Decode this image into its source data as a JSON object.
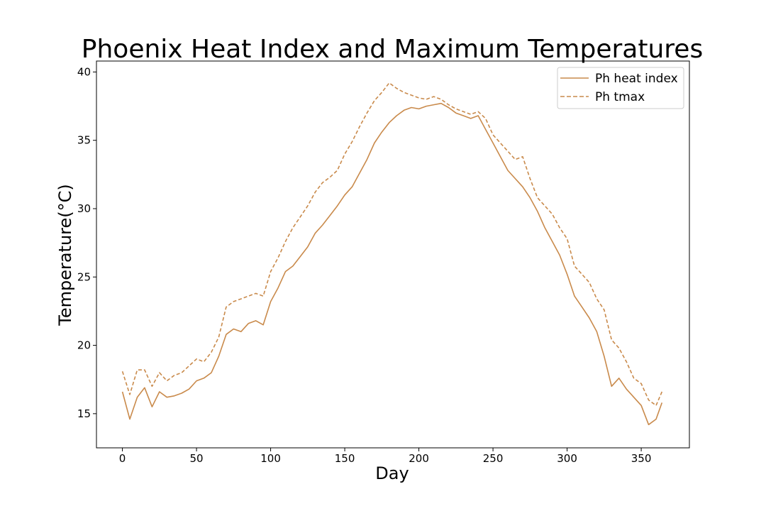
{
  "chart_data": {
    "type": "line",
    "title": "Phoenix Heat Index and Maximum Temperatures",
    "xlabel": "Day",
    "ylabel": "Temperature(°C)",
    "xlim": [
      -17.5,
      382.5
    ],
    "ylim": [
      12.5,
      40.8
    ],
    "xticks": [
      0,
      50,
      100,
      150,
      200,
      250,
      300,
      350
    ],
    "yticks": [
      15,
      20,
      25,
      30,
      35,
      40
    ],
    "legend_position": "top-right",
    "grid": false,
    "line_color": "#c98a4b",
    "series": [
      {
        "name": "Ph heat index",
        "style": "solid",
        "x": [
          0,
          5,
          10,
          15,
          20,
          25,
          30,
          35,
          40,
          45,
          50,
          55,
          60,
          65,
          70,
          75,
          80,
          85,
          90,
          95,
          100,
          105,
          110,
          115,
          120,
          125,
          130,
          135,
          140,
          145,
          150,
          155,
          160,
          165,
          170,
          175,
          180,
          185,
          190,
          195,
          200,
          205,
          210,
          215,
          220,
          225,
          230,
          235,
          240,
          245,
          250,
          255,
          260,
          265,
          270,
          275,
          280,
          285,
          290,
          295,
          300,
          305,
          310,
          315,
          320,
          325,
          330,
          335,
          340,
          345,
          350,
          355,
          360,
          364
        ],
        "y": [
          16.6,
          14.6,
          16.2,
          16.9,
          15.5,
          16.6,
          16.2,
          16.3,
          16.5,
          16.8,
          17.4,
          17.6,
          18.0,
          19.2,
          20.8,
          21.2,
          21.0,
          21.6,
          21.8,
          21.5,
          23.2,
          24.2,
          25.4,
          25.8,
          26.5,
          27.2,
          28.2,
          28.8,
          29.5,
          30.2,
          31.0,
          31.6,
          32.6,
          33.6,
          34.8,
          35.6,
          36.3,
          36.8,
          37.2,
          37.4,
          37.3,
          37.5,
          37.6,
          37.7,
          37.4,
          37.0,
          36.8,
          36.6,
          36.8,
          35.8,
          34.8,
          33.8,
          32.8,
          32.2,
          31.6,
          30.8,
          29.8,
          28.6,
          27.6,
          26.6,
          25.2,
          23.6,
          22.8,
          22.0,
          21.0,
          19.2,
          17.0,
          17.6,
          16.8,
          16.2,
          15.6,
          14.2,
          14.6,
          15.8
        ]
      },
      {
        "name": "Ph tmax",
        "style": "dashed",
        "x": [
          0,
          5,
          10,
          15,
          20,
          25,
          30,
          35,
          40,
          45,
          50,
          55,
          60,
          65,
          70,
          75,
          80,
          85,
          90,
          95,
          100,
          105,
          110,
          115,
          120,
          125,
          130,
          135,
          140,
          145,
          150,
          155,
          160,
          165,
          170,
          175,
          180,
          185,
          190,
          195,
          200,
          205,
          210,
          215,
          220,
          225,
          230,
          235,
          240,
          245,
          250,
          255,
          260,
          265,
          270,
          275,
          280,
          285,
          290,
          295,
          300,
          305,
          310,
          315,
          320,
          325,
          330,
          335,
          340,
          345,
          350,
          355,
          360,
          364
        ],
        "y": [
          18.1,
          16.4,
          18.2,
          18.2,
          17.0,
          18.0,
          17.4,
          17.8,
          18.0,
          18.5,
          19.0,
          18.8,
          19.5,
          20.6,
          22.8,
          23.2,
          23.4,
          23.6,
          23.8,
          23.6,
          25.4,
          26.4,
          27.6,
          28.6,
          29.4,
          30.2,
          31.2,
          31.9,
          32.3,
          32.8,
          34.0,
          34.9,
          36.0,
          37.0,
          37.9,
          38.5,
          39.2,
          38.8,
          38.5,
          38.3,
          38.1,
          38.0,
          38.2,
          38.0,
          37.6,
          37.3,
          37.1,
          36.9,
          37.1,
          36.6,
          35.4,
          34.8,
          34.2,
          33.6,
          33.8,
          32.2,
          30.8,
          30.2,
          29.6,
          28.6,
          27.8,
          25.8,
          25.2,
          24.6,
          23.4,
          22.6,
          20.4,
          19.8,
          18.8,
          17.6,
          17.2,
          16.0,
          15.6,
          16.6
        ]
      }
    ]
  }
}
